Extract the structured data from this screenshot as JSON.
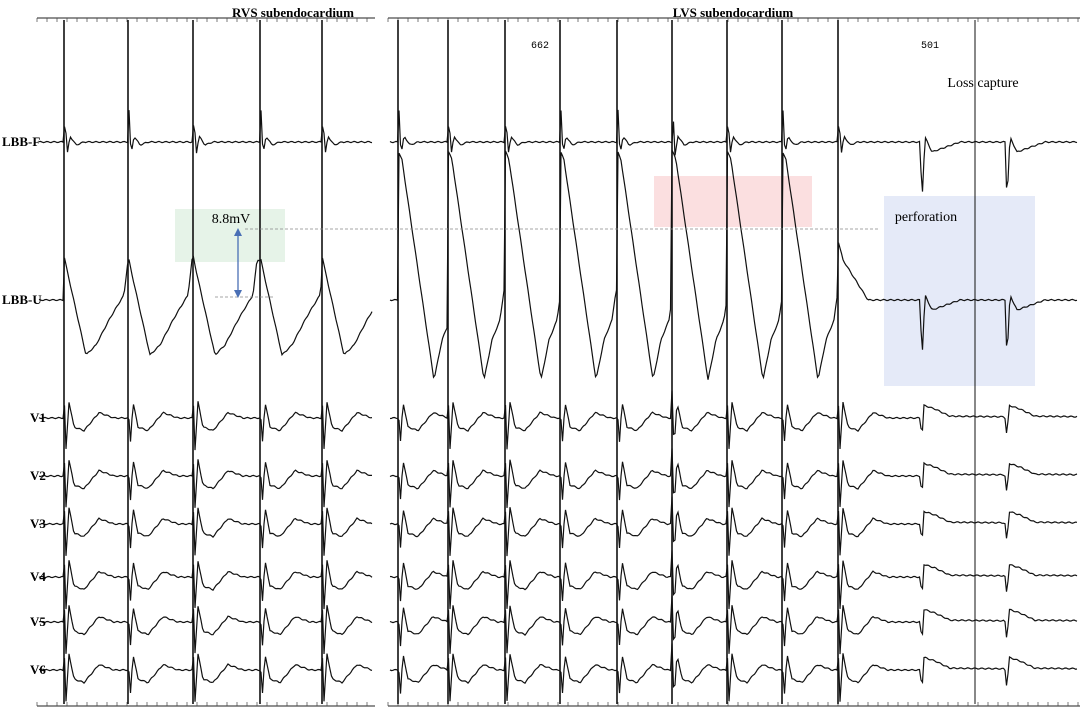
{
  "panels": {
    "left_title": "RVS subendocardium",
    "right_title": "LVS subendocardium"
  },
  "intervals": [
    "662",
    "501"
  ],
  "leads": [
    "LBB-F",
    "LBB-U",
    "V1",
    "V2",
    "V3",
    "V4",
    "V5",
    "V6"
  ],
  "annotations": {
    "amplitude": "8.8mV",
    "loss": "Loss capture",
    "perforation": "perforation"
  }
}
